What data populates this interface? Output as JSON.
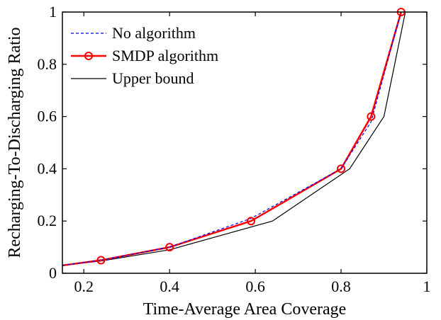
{
  "chart_data": {
    "type": "line",
    "title": "",
    "xlabel": "Time-Average Area Coverage",
    "ylabel": "Recharging-To-Discharging Ratio",
    "xlim": [
      0.15,
      1.0
    ],
    "ylim": [
      0,
      1
    ],
    "xticks": [
      0.2,
      0.4,
      0.6,
      0.8,
      1.0
    ],
    "xtick_labels": [
      "0.2",
      "0.4",
      "0.6",
      "0.8",
      "1"
    ],
    "yticks": [
      0,
      0.2,
      0.4,
      0.6,
      0.8,
      1.0
    ],
    "ytick_labels": [
      "0",
      "0.2",
      "0.4",
      "0.6",
      "0.8",
      "1"
    ],
    "grid": false,
    "legend_position": "top-left",
    "series": [
      {
        "name": "No algorithm",
        "color": "#0000ff",
        "style": "dotted",
        "marker": "none",
        "x": [
          0.15,
          0.24,
          0.4,
          0.59,
          0.8,
          0.87,
          0.94
        ],
        "y": [
          0.03,
          0.05,
          0.1,
          0.21,
          0.4,
          0.58,
          1.0
        ]
      },
      {
        "name": "SMDP algorithm",
        "color": "#ff0000",
        "style": "solid",
        "marker": "circle",
        "x": [
          0.15,
          0.24,
          0.4,
          0.59,
          0.8,
          0.87,
          0.94
        ],
        "y": [
          0.03,
          0.05,
          0.1,
          0.2,
          0.4,
          0.6,
          1.0
        ]
      },
      {
        "name": "Upper bound",
        "color": "#000000",
        "style": "solid",
        "marker": "none",
        "x": [
          0.15,
          0.24,
          0.4,
          0.64,
          0.82,
          0.9,
          0.95
        ],
        "y": [
          0.03,
          0.047,
          0.09,
          0.2,
          0.4,
          0.6,
          1.0
        ]
      }
    ]
  }
}
